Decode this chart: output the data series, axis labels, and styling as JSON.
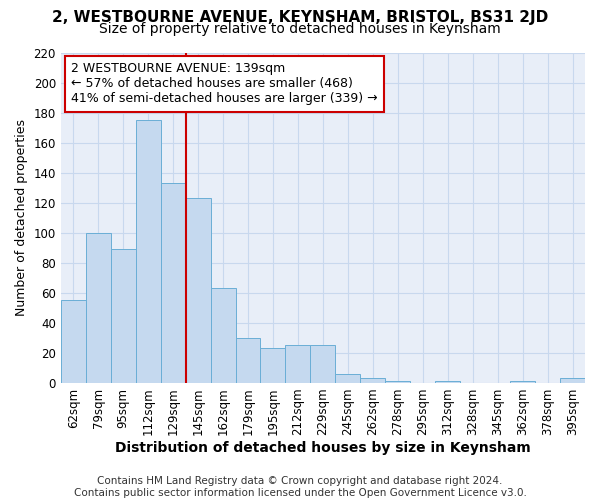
{
  "title": "2, WESTBOURNE AVENUE, KEYNSHAM, BRISTOL, BS31 2JD",
  "subtitle": "Size of property relative to detached houses in Keynsham",
  "xlabel": "Distribution of detached houses by size in Keynsham",
  "ylabel": "Number of detached properties",
  "categories": [
    "62sqm",
    "79sqm",
    "95sqm",
    "112sqm",
    "129sqm",
    "145sqm",
    "162sqm",
    "179sqm",
    "195sqm",
    "212sqm",
    "229sqm",
    "245sqm",
    "262sqm",
    "278sqm",
    "295sqm",
    "312sqm",
    "328sqm",
    "345sqm",
    "362sqm",
    "378sqm",
    "395sqm"
  ],
  "values": [
    55,
    100,
    89,
    175,
    133,
    123,
    63,
    30,
    23,
    25,
    25,
    6,
    3,
    1,
    0,
    1,
    0,
    0,
    1,
    0,
    3
  ],
  "bar_color": "#c5d9ef",
  "bar_edge_color": "#6aaed6",
  "vline_x": 4.5,
  "vline_color": "#cc0000",
  "annotation_line1": "2 WESTBOURNE AVENUE: 139sqm",
  "annotation_line2": "← 57% of detached houses are smaller (468)",
  "annotation_line3": "41% of semi-detached houses are larger (339) →",
  "annotation_box_color": "#ffffff",
  "annotation_box_edge_color": "#cc0000",
  "ylim": [
    0,
    220
  ],
  "yticks": [
    0,
    20,
    40,
    60,
    80,
    100,
    120,
    140,
    160,
    180,
    200,
    220
  ],
  "grid_color": "#c8d8ee",
  "background_color": "#e8eef8",
  "footer": "Contains HM Land Registry data © Crown copyright and database right 2024.\nContains public sector information licensed under the Open Government Licence v3.0.",
  "title_fontsize": 11,
  "subtitle_fontsize": 10,
  "xlabel_fontsize": 10,
  "ylabel_fontsize": 9,
  "tick_fontsize": 8.5,
  "annotation_fontsize": 9,
  "footer_fontsize": 7.5
}
